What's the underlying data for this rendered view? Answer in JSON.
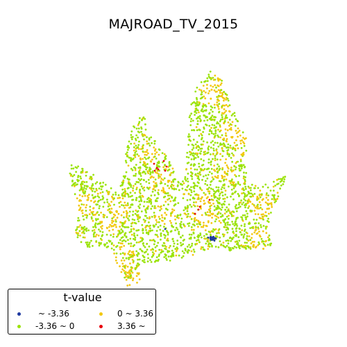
{
  "title": "MAJROAD_TV_2015",
  "legend": {
    "title": "t-value",
    "items": [
      {
        "label": "~ -3.36",
        "color": "#1f3aa0"
      },
      {
        "label": "-3.36 ~ 0",
        "color": "#9be30a"
      },
      {
        "label": "0 ~ 3.36",
        "color": "#f2c80f"
      },
      {
        "label": "3.36 ~",
        "color": "#e8000b"
      }
    ]
  }
}
